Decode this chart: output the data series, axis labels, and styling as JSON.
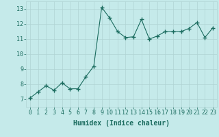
{
  "x": [
    0,
    1,
    2,
    3,
    4,
    5,
    6,
    7,
    8,
    9,
    10,
    11,
    12,
    13,
    14,
    15,
    16,
    17,
    18,
    19,
    20,
    21,
    22,
    23
  ],
  "y": [
    7.1,
    7.5,
    7.9,
    7.6,
    8.1,
    7.7,
    7.7,
    8.5,
    9.2,
    13.1,
    12.4,
    11.5,
    11.1,
    11.15,
    12.3,
    11.0,
    11.2,
    11.5,
    11.5,
    11.5,
    11.7,
    12.1,
    11.1,
    11.75
  ],
  "line_color": "#1a6b5e",
  "marker": "+",
  "marker_size": 4,
  "bg_color": "#c5eaea",
  "grid_color": "#b0d4d4",
  "xlabel": "Humidex (Indice chaleur)",
  "ylim": [
    6.5,
    13.5
  ],
  "xlim": [
    -0.5,
    23.5
  ],
  "yticks": [
    7,
    8,
    9,
    10,
    11,
    12,
    13
  ],
  "xticks": [
    0,
    1,
    2,
    3,
    4,
    5,
    6,
    7,
    8,
    9,
    10,
    11,
    12,
    13,
    14,
    15,
    16,
    17,
    18,
    19,
    20,
    21,
    22,
    23
  ],
  "tick_color": "#1a6b5e",
  "label_fontsize": 6,
  "xlabel_fontsize": 7
}
